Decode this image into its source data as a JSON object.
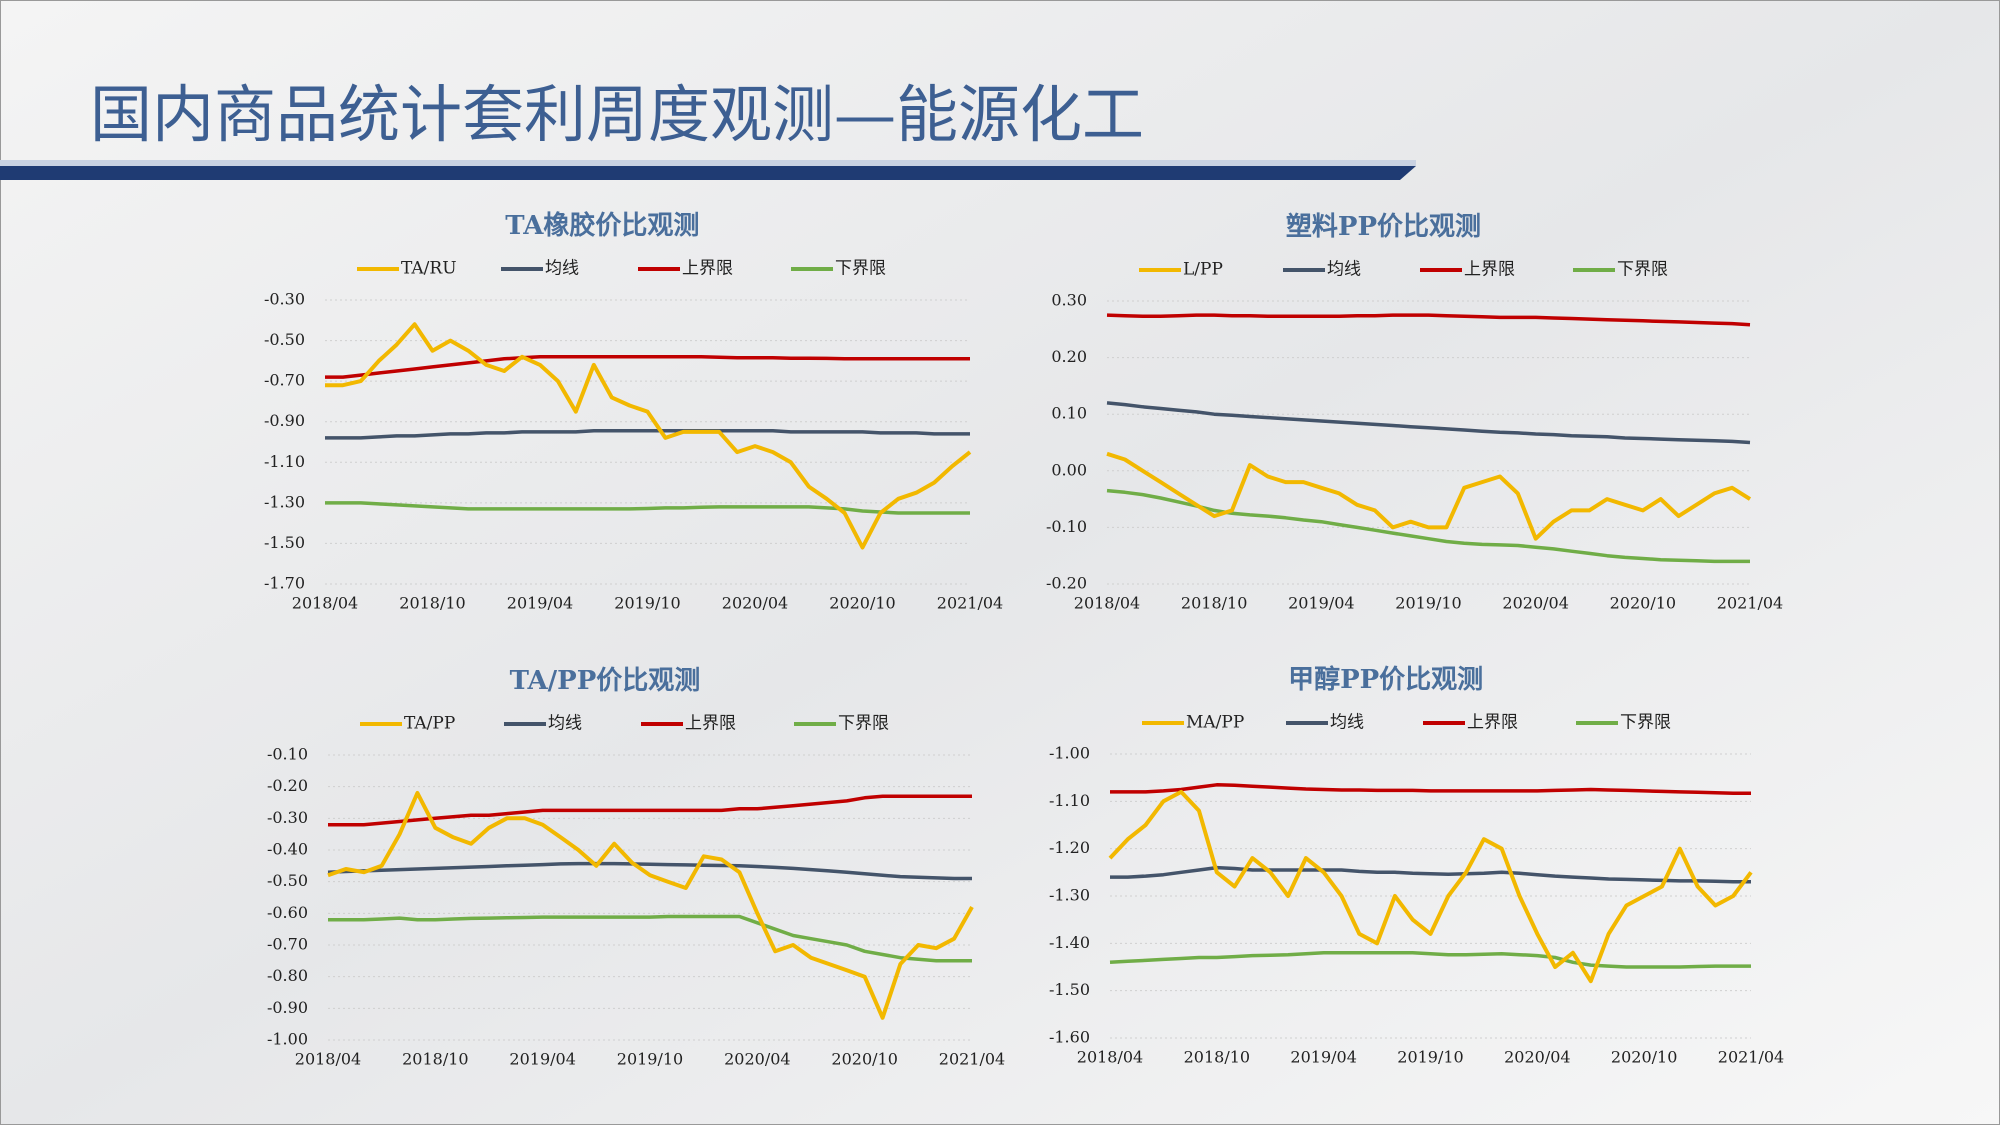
{
  "title": "国内商品统计套利周度观测—能源化工",
  "chart_data": [
    {
      "type": "line",
      "title": "TA橡胶价比观测",
      "categories": [
        "2018/04",
        null,
        null,
        null,
        null,
        null,
        "2018/10",
        null,
        null,
        null,
        null,
        null,
        "2019/04",
        null,
        null,
        null,
        null,
        null,
        "2019/10",
        null,
        null,
        null,
        null,
        null,
        "2020/04",
        null,
        null,
        null,
        null,
        null,
        "2020/10",
        null,
        null,
        null,
        null,
        null,
        "2021/04"
      ],
      "ylim": [
        -1.7,
        -0.3
      ],
      "yticks": [
        {
          "value": -0.3,
          "label": "-0.30"
        },
        {
          "value": -0.5,
          "label": "-0.50"
        },
        {
          "value": -0.7,
          "label": "-0.70"
        },
        {
          "value": -0.9,
          "label": "-0.90"
        },
        {
          "value": -1.1,
          "label": "-1.10"
        },
        {
          "value": -1.3,
          "label": "-1.30"
        },
        {
          "value": -1.5,
          "label": "-1.50"
        },
        {
          "value": -1.7,
          "label": "-1.70"
        }
      ],
      "grid": true,
      "series": [
        {
          "name": "TA/RU",
          "color": "#f2b800",
          "values": [
            -0.72,
            -0.72,
            -0.7,
            -0.6,
            -0.52,
            -0.42,
            -0.55,
            -0.5,
            -0.55,
            -0.62,
            -0.65,
            -0.58,
            -0.62,
            -0.7,
            -0.85,
            -0.62,
            -0.78,
            -0.82,
            -0.85,
            -0.98,
            -0.95,
            -0.95,
            -0.95,
            -1.05,
            -1.02,
            -1.05,
            -1.1,
            -1.22,
            -1.28,
            -1.35,
            -1.52,
            -1.35,
            -1.28,
            -1.25,
            -1.2,
            -1.12,
            -1.05
          ]
        },
        {
          "name": "均线",
          "color": "#44546a",
          "values": [
            -0.98,
            -0.98,
            -0.98,
            -0.975,
            -0.97,
            -0.97,
            -0.965,
            -0.96,
            -0.96,
            -0.955,
            -0.955,
            -0.95,
            -0.95,
            -0.95,
            -0.95,
            -0.945,
            -0.945,
            -0.945,
            -0.945,
            -0.945,
            -0.945,
            -0.945,
            -0.945,
            -0.945,
            -0.945,
            -0.945,
            -0.95,
            -0.95,
            -0.95,
            -0.95,
            -0.95,
            -0.955,
            -0.955,
            -0.955,
            -0.96,
            -0.96,
            -0.96
          ]
        },
        {
          "name": "上界限",
          "color": "#c00000",
          "values": [
            -0.68,
            -0.68,
            -0.67,
            -0.66,
            -0.65,
            -0.64,
            -0.63,
            -0.62,
            -0.61,
            -0.6,
            -0.59,
            -0.585,
            -0.58,
            -0.58,
            -0.58,
            -0.58,
            -0.58,
            -0.58,
            -0.58,
            -0.58,
            -0.58,
            -0.58,
            -0.582,
            -0.585,
            -0.585,
            -0.585,
            -0.587,
            -0.587,
            -0.588,
            -0.59,
            -0.59,
            -0.59,
            -0.59,
            -0.59,
            -0.59,
            -0.59,
            -0.59
          ]
        },
        {
          "name": "下界限",
          "color": "#70ad47",
          "values": [
            -1.3,
            -1.3,
            -1.3,
            -1.305,
            -1.31,
            -1.315,
            -1.32,
            -1.325,
            -1.33,
            -1.33,
            -1.33,
            -1.33,
            -1.33,
            -1.33,
            -1.33,
            -1.33,
            -1.33,
            -1.33,
            -1.328,
            -1.325,
            -1.325,
            -1.322,
            -1.32,
            -1.32,
            -1.32,
            -1.32,
            -1.32,
            -1.32,
            -1.325,
            -1.33,
            -1.34,
            -1.345,
            -1.35,
            -1.35,
            -1.35,
            -1.35,
            -1.35
          ]
        }
      ]
    },
    {
      "type": "line",
      "title": "塑料PP价比观测",
      "categories": [
        "2018/04",
        null,
        null,
        null,
        null,
        null,
        "2018/10",
        null,
        null,
        null,
        null,
        null,
        "2019/04",
        null,
        null,
        null,
        null,
        null,
        "2019/10",
        null,
        null,
        null,
        null,
        null,
        "2020/04",
        null,
        null,
        null,
        null,
        null,
        "2020/10",
        null,
        null,
        null,
        null,
        null,
        "2021/04"
      ],
      "ylim": [
        -0.2,
        0.3
      ],
      "yticks": [
        {
          "value": 0.3,
          "label": "0.30"
        },
        {
          "value": 0.2,
          "label": "0.20"
        },
        {
          "value": 0.1,
          "label": "0.10"
        },
        {
          "value": 0,
          "label": "0.00"
        },
        {
          "value": -0.1,
          "label": "-0.10"
        },
        {
          "value": -0.2,
          "label": "-0.20"
        }
      ],
      "grid": true,
      "series": [
        {
          "name": "L/PP",
          "color": "#f2b800",
          "values": [
            0.03,
            0.02,
            0.0,
            -0.02,
            -0.04,
            -0.06,
            -0.08,
            -0.07,
            0.01,
            -0.01,
            -0.02,
            -0.02,
            -0.03,
            -0.04,
            -0.06,
            -0.07,
            -0.1,
            -0.09,
            -0.1,
            -0.1,
            -0.03,
            -0.02,
            -0.01,
            -0.04,
            -0.12,
            -0.09,
            -0.07,
            -0.07,
            -0.05,
            -0.06,
            -0.07,
            -0.05,
            -0.08,
            -0.06,
            -0.04,
            -0.03,
            -0.05
          ]
        },
        {
          "name": "均线",
          "color": "#44546a",
          "values": [
            0.12,
            0.117,
            0.113,
            0.11,
            0.107,
            0.104,
            0.1,
            0.098,
            0.096,
            0.094,
            0.092,
            0.09,
            0.088,
            0.086,
            0.084,
            0.082,
            0.08,
            0.078,
            0.076,
            0.074,
            0.072,
            0.07,
            0.068,
            0.067,
            0.065,
            0.064,
            0.062,
            0.061,
            0.06,
            0.058,
            0.057,
            0.056,
            0.055,
            0.054,
            0.053,
            0.052,
            0.05
          ]
        },
        {
          "name": "上界限",
          "color": "#c00000",
          "values": [
            0.275,
            0.274,
            0.273,
            0.273,
            0.274,
            0.275,
            0.275,
            0.274,
            0.274,
            0.273,
            0.273,
            0.273,
            0.273,
            0.273,
            0.274,
            0.274,
            0.275,
            0.275,
            0.275,
            0.274,
            0.273,
            0.272,
            0.271,
            0.271,
            0.271,
            0.27,
            0.269,
            0.268,
            0.267,
            0.266,
            0.265,
            0.264,
            0.263,
            0.262,
            0.261,
            0.26,
            0.258
          ]
        },
        {
          "name": "下界限",
          "color": "#70ad47",
          "values": [
            -0.035,
            -0.038,
            -0.042,
            -0.048,
            -0.055,
            -0.062,
            -0.07,
            -0.075,
            -0.078,
            -0.08,
            -0.083,
            -0.087,
            -0.09,
            -0.095,
            -0.1,
            -0.105,
            -0.11,
            -0.115,
            -0.12,
            -0.125,
            -0.128,
            -0.13,
            -0.131,
            -0.132,
            -0.135,
            -0.138,
            -0.142,
            -0.146,
            -0.15,
            -0.153,
            -0.155,
            -0.157,
            -0.158,
            -0.159,
            -0.16,
            -0.16,
            -0.16
          ]
        }
      ]
    },
    {
      "type": "line",
      "title": "TA/PP价比观测",
      "categories": [
        "2018/04",
        null,
        null,
        null,
        null,
        null,
        "2018/10",
        null,
        null,
        null,
        null,
        null,
        "2019/04",
        null,
        null,
        null,
        null,
        null,
        "2019/10",
        null,
        null,
        null,
        null,
        null,
        "2020/04",
        null,
        null,
        null,
        null,
        null,
        "2020/10",
        null,
        null,
        null,
        null,
        null,
        "2021/04"
      ],
      "ylim": [
        -1.0,
        -0.1
      ],
      "yticks": [
        {
          "value": -0.1,
          "label": "-0.10"
        },
        {
          "value": -0.2,
          "label": "-0.20"
        },
        {
          "value": -0.3,
          "label": "-0.30"
        },
        {
          "value": -0.4,
          "label": "-0.40"
        },
        {
          "value": -0.5,
          "label": "-0.50"
        },
        {
          "value": -0.6,
          "label": "-0.60"
        },
        {
          "value": -0.7,
          "label": "-0.70"
        },
        {
          "value": -0.8,
          "label": "-0.80"
        },
        {
          "value": -0.9,
          "label": "-0.90"
        },
        {
          "value": -1.0,
          "label": "-1.00"
        }
      ],
      "grid": true,
      "series": [
        {
          "name": "TA/PP",
          "color": "#f2b800",
          "values": [
            -0.48,
            -0.46,
            -0.47,
            -0.45,
            -0.35,
            -0.22,
            -0.33,
            -0.36,
            -0.38,
            -0.33,
            -0.3,
            -0.3,
            -0.32,
            -0.36,
            -0.4,
            -0.45,
            -0.38,
            -0.44,
            -0.48,
            -0.5,
            -0.52,
            -0.42,
            -0.43,
            -0.47,
            -0.6,
            -0.72,
            -0.7,
            -0.74,
            -0.76,
            -0.78,
            -0.8,
            -0.93,
            -0.76,
            -0.7,
            -0.71,
            -0.68,
            -0.58
          ]
        },
        {
          "name": "均线",
          "color": "#44546a",
          "values": [
            -0.47,
            -0.468,
            -0.466,
            -0.464,
            -0.462,
            -0.46,
            -0.458,
            -0.456,
            -0.454,
            -0.452,
            -0.45,
            -0.448,
            -0.446,
            -0.444,
            -0.443,
            -0.443,
            -0.443,
            -0.444,
            -0.445,
            -0.446,
            -0.447,
            -0.448,
            -0.449,
            -0.45,
            -0.452,
            -0.455,
            -0.458,
            -0.462,
            -0.466,
            -0.47,
            -0.475,
            -0.48,
            -0.484,
            -0.486,
            -0.488,
            -0.49,
            -0.49
          ]
        },
        {
          "name": "上界限",
          "color": "#c00000",
          "values": [
            -0.32,
            -0.32,
            -0.32,
            -0.315,
            -0.31,
            -0.305,
            -0.3,
            -0.295,
            -0.29,
            -0.29,
            -0.285,
            -0.28,
            -0.275,
            -0.275,
            -0.275,
            -0.275,
            -0.275,
            -0.275,
            -0.275,
            -0.275,
            -0.275,
            -0.275,
            -0.275,
            -0.27,
            -0.27,
            -0.265,
            -0.26,
            -0.255,
            -0.25,
            -0.245,
            -0.235,
            -0.23,
            -0.23,
            -0.23,
            -0.23,
            -0.23,
            -0.23
          ]
        },
        {
          "name": "下界限",
          "color": "#70ad47",
          "values": [
            -0.62,
            -0.62,
            -0.62,
            -0.618,
            -0.615,
            -0.62,
            -0.62,
            -0.618,
            -0.616,
            -0.615,
            -0.614,
            -0.613,
            -0.612,
            -0.612,
            -0.612,
            -0.612,
            -0.612,
            -0.612,
            -0.612,
            -0.61,
            -0.61,
            -0.61,
            -0.61,
            -0.61,
            -0.63,
            -0.65,
            -0.67,
            -0.68,
            -0.69,
            -0.7,
            -0.72,
            -0.73,
            -0.74,
            -0.745,
            -0.75,
            -0.75,
            -0.75
          ]
        }
      ]
    },
    {
      "type": "line",
      "title": "甲醇PP价比观测",
      "categories": [
        "2018/04",
        null,
        null,
        null,
        null,
        null,
        "2018/10",
        null,
        null,
        null,
        null,
        null,
        "2019/04",
        null,
        null,
        null,
        null,
        null,
        "2019/10",
        null,
        null,
        null,
        null,
        null,
        "2020/04",
        null,
        null,
        null,
        null,
        null,
        "2020/10",
        null,
        null,
        null,
        null,
        null,
        "2021/04"
      ],
      "ylim": [
        -1.6,
        -1.0
      ],
      "yticks": [
        {
          "value": -1.0,
          "label": "-1.00"
        },
        {
          "value": -1.1,
          "label": "-1.10"
        },
        {
          "value": -1.2,
          "label": "-1.20"
        },
        {
          "value": -1.3,
          "label": "-1.30"
        },
        {
          "value": -1.4,
          "label": "-1.40"
        },
        {
          "value": -1.5,
          "label": "-1.50"
        },
        {
          "value": -1.6,
          "label": "-1.60"
        }
      ],
      "grid": true,
      "series": [
        {
          "name": "MA/PP",
          "color": "#f2b800",
          "values": [
            -1.22,
            -1.18,
            -1.15,
            -1.1,
            -1.08,
            -1.12,
            -1.25,
            -1.28,
            -1.22,
            -1.25,
            -1.3,
            -1.22,
            -1.25,
            -1.3,
            -1.38,
            -1.4,
            -1.3,
            -1.35,
            -1.38,
            -1.3,
            -1.25,
            -1.18,
            -1.2,
            -1.3,
            -1.38,
            -1.45,
            -1.42,
            -1.48,
            -1.38,
            -1.32,
            -1.3,
            -1.28,
            -1.2,
            -1.28,
            -1.32,
            -1.3,
            -1.25
          ]
        },
        {
          "name": "均线",
          "color": "#44546a",
          "values": [
            -1.26,
            -1.26,
            -1.258,
            -1.255,
            -1.25,
            -1.245,
            -1.24,
            -1.242,
            -1.245,
            -1.245,
            -1.245,
            -1.245,
            -1.245,
            -1.245,
            -1.248,
            -1.25,
            -1.25,
            -1.252,
            -1.253,
            -1.254,
            -1.253,
            -1.252,
            -1.25,
            -1.252,
            -1.255,
            -1.258,
            -1.26,
            -1.262,
            -1.264,
            -1.265,
            -1.266,
            -1.267,
            -1.268,
            -1.268,
            -1.269,
            -1.27,
            -1.27
          ]
        },
        {
          "name": "上界限",
          "color": "#c00000",
          "values": [
            -1.08,
            -1.08,
            -1.08,
            -1.078,
            -1.075,
            -1.07,
            -1.065,
            -1.066,
            -1.068,
            -1.07,
            -1.072,
            -1.074,
            -1.075,
            -1.076,
            -1.076,
            -1.077,
            -1.077,
            -1.077,
            -1.078,
            -1.078,
            -1.078,
            -1.078,
            -1.078,
            -1.078,
            -1.078,
            -1.077,
            -1.076,
            -1.075,
            -1.076,
            -1.077,
            -1.078,
            -1.079,
            -1.08,
            -1.081,
            -1.082,
            -1.083,
            -1.083
          ]
        },
        {
          "name": "下界限",
          "color": "#70ad47",
          "values": [
            -1.44,
            -1.438,
            -1.436,
            -1.434,
            -1.432,
            -1.43,
            -1.43,
            -1.428,
            -1.426,
            -1.425,
            -1.424,
            -1.422,
            -1.42,
            -1.42,
            -1.42,
            -1.42,
            -1.42,
            -1.42,
            -1.422,
            -1.424,
            -1.424,
            -1.423,
            -1.422,
            -1.424,
            -1.426,
            -1.43,
            -1.44,
            -1.446,
            -1.448,
            -1.45,
            -1.45,
            -1.45,
            -1.45,
            -1.449,
            -1.448,
            -1.448,
            -1.448
          ]
        }
      ]
    }
  ]
}
